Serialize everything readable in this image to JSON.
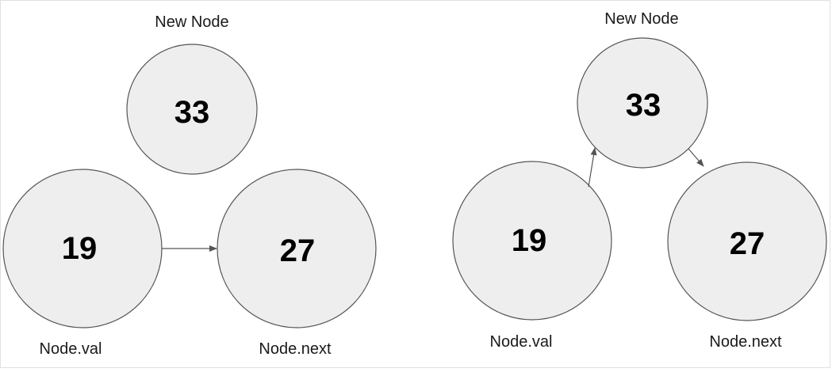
{
  "left": {
    "new_node": {
      "label": "New Node",
      "value": "33"
    },
    "val_node": {
      "label": "Node.val",
      "value": "19"
    },
    "next_node": {
      "label": "Node.next",
      "value": "27"
    }
  },
  "right": {
    "new_node": {
      "label": "New Node",
      "value": "33"
    },
    "val_node": {
      "label": "Node.val",
      "value": "19"
    },
    "next_node": {
      "label": "Node.next",
      "value": "27"
    }
  },
  "colors": {
    "node_fill": "#eeeeee",
    "node_stroke": "#555555",
    "arrow": "#555555"
  }
}
